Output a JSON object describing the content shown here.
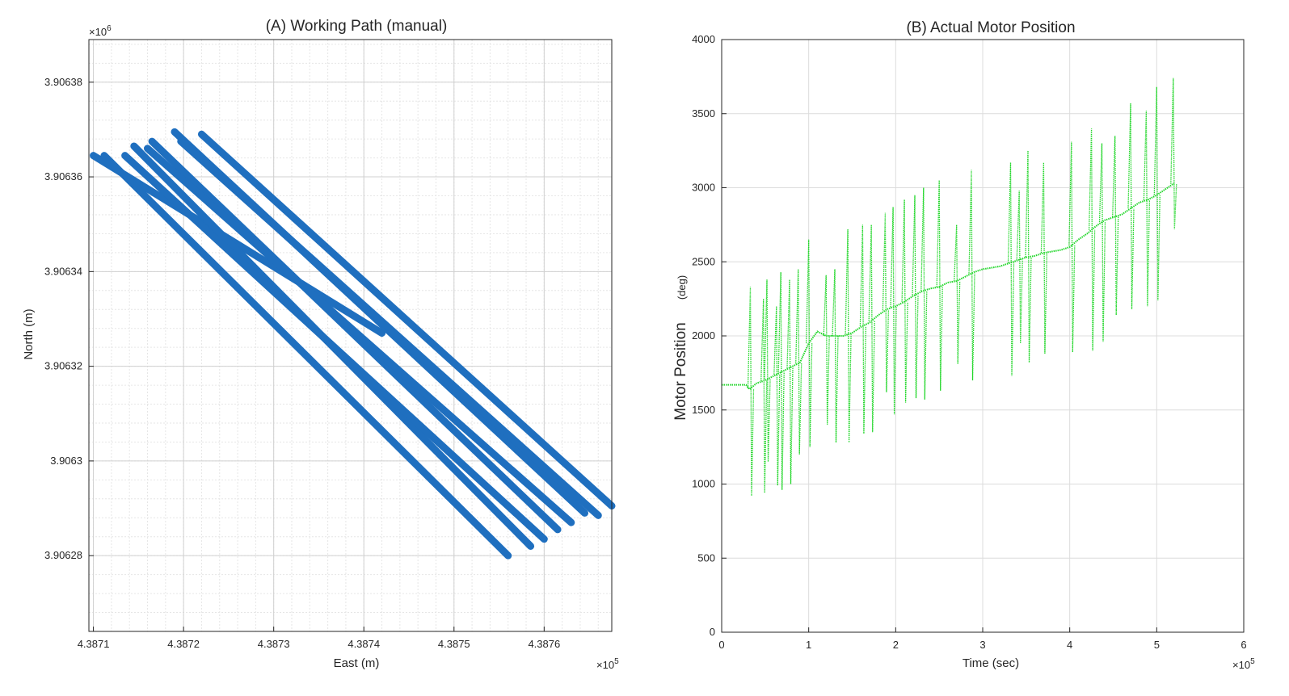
{
  "chart_data": [
    {
      "type": "scatter",
      "title": "(A) Working Path (manual)",
      "xlabel": "East (m)",
      "ylabel": "North (m)",
      "x_exponent": "×10^5",
      "y_exponent": "×10^6",
      "xlim": [
        438709.5,
        438767.5
      ],
      "ylim": [
        3906264.0,
        3906389.0
      ],
      "x_ticks": [
        438710,
        438720,
        438730,
        438740,
        438750,
        438760
      ],
      "x_tick_labels": [
        "4.3871",
        "4.3872",
        "4.3873",
        "4.3874",
        "4.3875",
        "4.3876"
      ],
      "y_ticks": [
        3906280,
        3906300,
        3906320,
        3906340,
        3906360,
        3906380
      ],
      "y_tick_labels": [
        "3.90628",
        "3.9063",
        "3.90632",
        "3.90634",
        "3.90636",
        "3.90638"
      ],
      "grid": "major and minor",
      "marker_color": "#1f6fbf",
      "series": [
        {
          "x": [
            438710.0,
            438742.0
          ],
          "y": [
            3906364.5,
            3906327.0
          ]
        },
        {
          "x": [
            438711.2,
            438756.0
          ],
          "y": [
            3906364.5,
            3906280.0
          ]
        },
        {
          "x": [
            438714.5,
            438758.5
          ],
          "y": [
            3906366.5,
            3906282.0
          ]
        },
        {
          "x": [
            438713.5,
            438760.0
          ],
          "y": [
            3906364.5,
            3906283.5
          ]
        },
        {
          "x": [
            438716.5,
            438761.5
          ],
          "y": [
            3906367.5,
            3906285.5
          ]
        },
        {
          "x": [
            438716.0,
            438763.0
          ],
          "y": [
            3906366.0,
            3906287.0
          ]
        },
        {
          "x": [
            438719.0,
            438764.5
          ],
          "y": [
            3906369.5,
            3906289.0
          ]
        },
        {
          "x": [
            438719.7,
            438766.0
          ],
          "y": [
            3906367.5,
            3906288.5
          ]
        },
        {
          "x": [
            438722.0,
            438767.5
          ],
          "y": [
            3906369.0,
            3906290.5
          ]
        }
      ]
    },
    {
      "type": "line",
      "title": "(B) Actual Motor Position",
      "xlabel": "Time (sec)",
      "ylabel": "Motor Position",
      "ylabel_unit": "(deg)",
      "x_exponent": "×10^5",
      "xlim": [
        0,
        600000
      ],
      "ylim": [
        0,
        4000
      ],
      "x_ticks": [
        0,
        100000,
        200000,
        300000,
        400000,
        500000,
        600000
      ],
      "x_tick_labels": [
        "0",
        "1",
        "2",
        "3",
        "4",
        "5",
        "6"
      ],
      "y_ticks": [
        0,
        500,
        1000,
        1500,
        2000,
        2500,
        3000,
        3500,
        4000
      ],
      "y_tick_labels": [
        "0",
        "500",
        "1000",
        "1500",
        "2000",
        "2500",
        "3000",
        "3500",
        "4000"
      ],
      "grid": "on",
      "line_color": "#22d62a",
      "series": [
        {
          "x": [
            0,
            28000,
            32000,
            40000,
            50000,
            60000,
            70000,
            80000,
            90000,
            100000,
            110000,
            120000,
            140000,
            150000,
            160000,
            170000,
            180000,
            190000,
            200000,
            210000,
            220000,
            230000,
            240000,
            250000,
            260000,
            270000,
            280000,
            290000,
            300000,
            310000,
            320000,
            330000,
            340000,
            350000,
            360000,
            370000,
            380000,
            390000,
            400000,
            410000,
            420000,
            430000,
            440000,
            450000,
            460000,
            470000,
            480000,
            490000,
            500000,
            510000,
            520000
          ],
          "y": [
            1670,
            1670,
            1640,
            1680,
            1700,
            1730,
            1760,
            1790,
            1820,
            1950,
            2030,
            2000,
            2000,
            2020,
            2060,
            2090,
            2140,
            2180,
            2200,
            2230,
            2270,
            2300,
            2320,
            2330,
            2360,
            2370,
            2400,
            2430,
            2450,
            2460,
            2470,
            2490,
            2510,
            2530,
            2540,
            2560,
            2570,
            2580,
            2600,
            2650,
            2690,
            2740,
            2780,
            2800,
            2820,
            2860,
            2900,
            2920,
            2950,
            2990,
            3030
          ]
        }
      ],
      "spikes": [
        {
          "x": 33000,
          "high": 2330,
          "low": 920
        },
        {
          "x": 48000,
          "high": 2250,
          "low": 940
        },
        {
          "x": 52000,
          "high": 2380,
          "low": 1150
        },
        {
          "x": 63000,
          "high": 2200,
          "low": 990
        },
        {
          "x": 68000,
          "high": 2430,
          "low": 960
        },
        {
          "x": 78000,
          "high": 2380,
          "low": 1000
        },
        {
          "x": 88000,
          "high": 2450,
          "low": 1200
        },
        {
          "x": 100000,
          "high": 2650,
          "low": 1250
        },
        {
          "x": 120000,
          "high": 2410,
          "low": 1400
        },
        {
          "x": 130000,
          "high": 2450,
          "low": 1280
        },
        {
          "x": 145000,
          "high": 2720,
          "low": 1280
        },
        {
          "x": 162000,
          "high": 2750,
          "low": 1340
        },
        {
          "x": 172000,
          "high": 2750,
          "low": 1350
        },
        {
          "x": 188000,
          "high": 2830,
          "low": 1620
        },
        {
          "x": 197000,
          "high": 2870,
          "low": 1470
        },
        {
          "x": 210000,
          "high": 2920,
          "low": 1550
        },
        {
          "x": 222000,
          "high": 2950,
          "low": 1580
        },
        {
          "x": 232000,
          "high": 3000,
          "low": 1570
        },
        {
          "x": 250000,
          "high": 3050,
          "low": 1630
        },
        {
          "x": 270000,
          "high": 2750,
          "low": 1810
        },
        {
          "x": 287000,
          "high": 3120,
          "low": 1700
        },
        {
          "x": 332000,
          "high": 3170,
          "low": 1730
        },
        {
          "x": 342000,
          "high": 2980,
          "low": 1950
        },
        {
          "x": 352000,
          "high": 3250,
          "low": 1820
        },
        {
          "x": 370000,
          "high": 3170,
          "low": 1880
        },
        {
          "x": 402000,
          "high": 3310,
          "low": 1890
        },
        {
          "x": 425000,
          "high": 3400,
          "low": 1900
        },
        {
          "x": 437000,
          "high": 3300,
          "low": 1960
        },
        {
          "x": 452000,
          "high": 3350,
          "low": 2140
        },
        {
          "x": 470000,
          "high": 3570,
          "low": 2180
        },
        {
          "x": 488000,
          "high": 3520,
          "low": 2200
        },
        {
          "x": 500000,
          "high": 3680,
          "low": 2240
        },
        {
          "x": 519000,
          "high": 3740,
          "low": 2720
        }
      ]
    }
  ]
}
